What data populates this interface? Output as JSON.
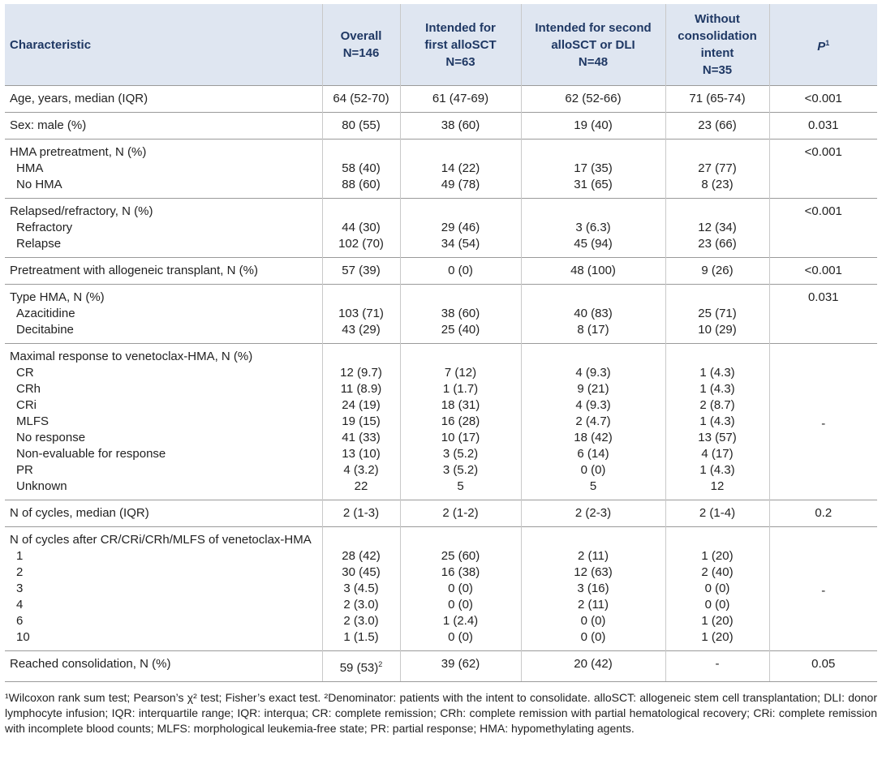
{
  "table": {
    "header": [
      {
        "lines": [
          "Characteristic"
        ]
      },
      {
        "lines": [
          "Overall",
          "N=146"
        ]
      },
      {
        "lines": [
          "Intended for",
          "first alloSCT",
          "N=63"
        ]
      },
      {
        "lines": [
          "Intended for second",
          "alloSCT or DLI",
          "N=48"
        ]
      },
      {
        "lines": [
          "Without",
          "consolidation",
          "intent",
          "N=35"
        ]
      },
      {
        "lines": [
          "P"
        ],
        "sup": "1"
      }
    ],
    "groups": [
      {
        "rows": [
          [
            "Age, years, median (IQR)",
            "64 (52-70)",
            "61 (47-69)",
            "62 (52-66)",
            "71 (65-74)"
          ]
        ],
        "p": "<0.001"
      },
      {
        "rows": [
          [
            "Sex: male (%)",
            "80 (55)",
            "38 (60)",
            "19 (40)",
            "23 (66)"
          ]
        ],
        "p": "0.031"
      },
      {
        "title": "HMA pretreatment, N (%)",
        "rows": [
          [
            "HMA",
            "58 (40)",
            "14 (22)",
            "17 (35)",
            "27 (77)"
          ],
          [
            "No HMA",
            "88 (60)",
            "49 (78)",
            "31 (65)",
            "8 (23)"
          ]
        ],
        "p": "<0.001"
      },
      {
        "title": "Relapsed/refractory, N (%)",
        "rows": [
          [
            "Refractory",
            "44 (30)",
            "29 (46)",
            "3 (6.3)",
            "12 (34)"
          ],
          [
            "Relapse",
            "102 (70)",
            "34 (54)",
            "45 (94)",
            "23 (66)"
          ]
        ],
        "p": "<0.001"
      },
      {
        "rows": [
          [
            "Pretreatment with allogeneic transplant, N (%)",
            "57 (39)",
            "0 (0)",
            "48 (100)",
            "9 (26)"
          ]
        ],
        "p": "<0.001"
      },
      {
        "title": "Type HMA, N (%)",
        "rows": [
          [
            "Azacitidine",
            "103 (71)",
            "38 (60)",
            "40 (83)",
            "25 (71)"
          ],
          [
            "Decitabine",
            "43 (29)",
            "25 (40)",
            "8 (17)",
            "10 (29)"
          ]
        ],
        "p": "0.031"
      },
      {
        "title": "Maximal response to venetoclax-HMA, N (%)",
        "rows": [
          [
            "CR",
            "12 (9.7)",
            "7 (12)",
            "4 (9.3)",
            "1 (4.3)"
          ],
          [
            "CRh",
            "11 (8.9)",
            "1 (1.7)",
            "9 (21)",
            "1 (4.3)"
          ],
          [
            "CRi",
            "24 (19)",
            "18 (31)",
            "4 (9.3)",
            "2 (8.7)"
          ],
          [
            "MLFS",
            "19 (15)",
            "16 (28)",
            "2 (4.7)",
            "1 (4.3)"
          ],
          [
            "No response",
            "41 (33)",
            "10 (17)",
            "18 (42)",
            "13 (57)"
          ],
          [
            "Non-evaluable for response",
            "13 (10)",
            "3 (5.2)",
            "6 (14)",
            "4 (17)"
          ],
          [
            "PR",
            "4 (3.2)",
            "3 (5.2)",
            "0 (0)",
            "1 (4.3)"
          ],
          [
            "Unknown",
            "22",
            "5",
            "5",
            "12"
          ]
        ],
        "p": "-"
      },
      {
        "rows": [
          [
            "N of cycles, median (IQR)",
            "2 (1-3)",
            "2 (1-2)",
            "2 (2-3)",
            "2 (1-4)"
          ]
        ],
        "p": "0.2"
      },
      {
        "title": "N of cycles after CR/CRi/CRh/MLFS of venetoclax-HMA",
        "rows": [
          [
            "1",
            "28 (42)",
            "25 (60)",
            "2 (11)",
            "1 (20)"
          ],
          [
            "2",
            "30 (45)",
            "16 (38)",
            "12 (63)",
            "2 (40)"
          ],
          [
            "3",
            "3 (4.5)",
            "0 (0)",
            "3 (16)",
            "0 (0)"
          ],
          [
            "4",
            "2 (3.0)",
            "0 (0)",
            "2 (11)",
            "0 (0)"
          ],
          [
            "6",
            "2 (3.0)",
            "1 (2.4)",
            "0 (0)",
            "1 (20)"
          ],
          [
            "10",
            "1 (1.5)",
            "0 (0)",
            "0 (0)",
            "1 (20)"
          ]
        ],
        "p": "-"
      },
      {
        "rows": [
          [
            "Reached consolidation, N (%)",
            {
              "text": "59 (53)",
              "sup": "2"
            },
            "39 (62)",
            "20 (42)",
            "-"
          ]
        ],
        "p": "0.05"
      }
    ]
  },
  "footnote": "¹Wilcoxon rank sum test; Pearson’s χ² test; Fisher’s exact test. ²Denominator: patients with the intent to consolidate. alloSCT: allogeneic stem cell transplantation; DLI: donor lymphocyte infusion; IQR: interquartile range; IQR: interqua; CR: complete remission; CRh: complete remission with partial hematological recovery; CRi: complete remission with incomplete blood counts; MLFS: morphological leukemia-free state; PR: partial response; HMA: hypomethylating agents."
}
